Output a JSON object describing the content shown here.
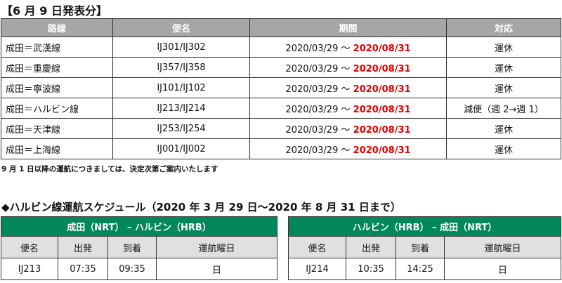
{
  "title": "【6 月 9 日発表分】",
  "table": {
    "headers": [
      "路線",
      "便名",
      "期間",
      "対応"
    ],
    "rows": [
      {
        "route": "成田＝武漢線",
        "flights": "IJ301/IJ302",
        "from": "2020/03/29 ～ ",
        "to": "2020/08/31",
        "action": "運休"
      },
      {
        "route": "成田＝重慶線",
        "flights": "IJ357/IJ358",
        "from": "2020/03/29 ～ ",
        "to": "2020/08/31",
        "action": "運休"
      },
      {
        "route": "成田＝寧波線",
        "flights": "IJ101/IJ102",
        "from": "2020/03/29 ～ ",
        "to": "2020/08/31",
        "action": "運休"
      },
      {
        "route": "成田＝ハルビン線",
        "flights": "IJ213/IJ214",
        "from": "2020/03/29 ～ ",
        "to": "2020/08/31",
        "action": "減便（週 2→週 1）"
      },
      {
        "route": "成田＝天津線",
        "flights": "IJ253/IJ254",
        "from": "2020/03/29 ～ ",
        "to": "2020/08/31",
        "action": "運休"
      },
      {
        "route": "成田＝上海線",
        "flights": "IJ001/IJ002",
        "from": "2020/03/29 ～ ",
        "to": "2020/08/31",
        "action": "運休"
      }
    ]
  },
  "note": "9 月 1 日以降の運航につきましては、決定次第ご案内いたします",
  "schedule_title": "◆ハルビン線運航スケジュール（2020 年 3 月 29 日～2020 年 8 月 31 日まで）",
  "schedules": [
    {
      "title": "成田（NRT） – ハルビン（HRB）",
      "headers": [
        "便名",
        "出発",
        "到着",
        "運航曜日"
      ],
      "row": [
        "IJ213",
        "07:35",
        "09:35",
        "日"
      ]
    },
    {
      "title": "ハルビン（HRB） – 成田（NRT）",
      "headers": [
        "便名",
        "出発",
        "到着",
        "運航曜日"
      ],
      "row": [
        "IJ214",
        "10:35",
        "14:25",
        "日"
      ]
    }
  ],
  "colors": {
    "header_gray": "#a6a6a6",
    "green": "#00875a",
    "red": "#e00000"
  }
}
